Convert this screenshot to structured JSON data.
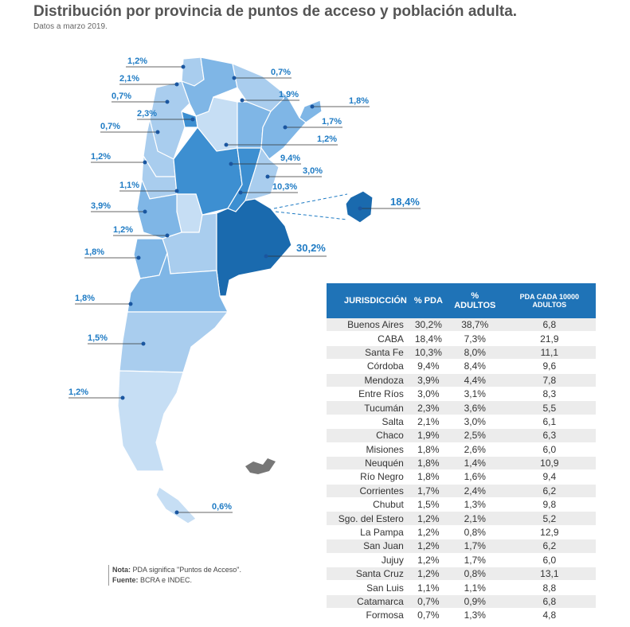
{
  "header": {
    "title": "Distribución por provincia de puntos de acceso y población adulta.",
    "subtitle": "Datos a marzo 2019."
  },
  "map_labels": {
    "jujuy": "1,2%",
    "salta_n": "2,1%",
    "catamarca": "0,7%",
    "tucuman": "2,3%",
    "la_rioja": "0,7%",
    "san_juan": "1,2%",
    "san_luis": "1,1%",
    "mendoza": "3,9%",
    "neuquen_upper": "1,2%",
    "neuquen": "1,8%",
    "rio_negro": "1,8%",
    "chubut": "1,5%",
    "santa_cruz": "1,2%",
    "tierra_del_fuego": "0,6%",
    "formosa": "0,7%",
    "chaco": "1,9%",
    "misiones": "1,8%",
    "corrientes": "1,7%",
    "sgo_estero": "1,2%",
    "cordoba": "9,4%",
    "entre_rios": "3,0%",
    "santa_fe": "10,3%",
    "caba": "18,4%",
    "buenos_aires": "30,2%"
  },
  "colors": {
    "darkest": "#1a6aae",
    "dark": "#3d8fd1",
    "medium": "#7fb6e6",
    "light": "#a9cdee",
    "lightest": "#c6def4",
    "accent": "#1f7bc4"
  },
  "table": {
    "headers": [
      "JURISDICCIÓN",
      "% PDA",
      "% ADULTOS",
      "PDA CADA 10000 ADULTOS"
    ],
    "rows": [
      [
        "Buenos Aires",
        "30,2%",
        "38,7%",
        "6,8"
      ],
      [
        "CABA",
        "18,4%",
        "7,3%",
        "21,9"
      ],
      [
        "Santa Fe",
        "10,3%",
        "8,0%",
        "11,1"
      ],
      [
        "Córdoba",
        "9,4%",
        "8,4%",
        "9,6"
      ],
      [
        "Mendoza",
        "3,9%",
        "4,4%",
        "7,8"
      ],
      [
        "Entre Ríos",
        "3,0%",
        "3,1%",
        "8,3"
      ],
      [
        "Tucumán",
        "2,3%",
        "3,6%",
        "5,5"
      ],
      [
        "Salta",
        "2,1%",
        "3,0%",
        "6,1"
      ],
      [
        "Chaco",
        "1,9%",
        "2,5%",
        "6,3"
      ],
      [
        "Misiones",
        "1,8%",
        "2,6%",
        "6,0"
      ],
      [
        "Neuquén",
        "1,8%",
        "1,4%",
        "10,9"
      ],
      [
        "Río Negro",
        "1,8%",
        "1,6%",
        "9,4"
      ],
      [
        "Corrientes",
        "1,7%",
        "2,4%",
        "6,2"
      ],
      [
        "Chubut",
        "1,5%",
        "1,3%",
        "9,8"
      ],
      [
        "Sgo. del Estero",
        "1,2%",
        "2,1%",
        "5,2"
      ],
      [
        "La Pampa",
        "1,2%",
        "0,8%",
        "12,9"
      ],
      [
        "San Juan",
        "1,2%",
        "1,7%",
        "6,2"
      ],
      [
        "Jujuy",
        "1,2%",
        "1,7%",
        "6,0"
      ],
      [
        "Santa Cruz",
        "1,2%",
        "0,8%",
        "13,1"
      ],
      [
        "San Luis",
        "1,1%",
        "1,1%",
        "8,8"
      ],
      [
        "Catamarca",
        "0,7%",
        "0,9%",
        "6,8"
      ],
      [
        "Formosa",
        "0,7%",
        "1,3%",
        "4,8"
      ]
    ]
  },
  "note": {
    "nota_label": "Nota:",
    "nota_text": " PDA significa \"Puntos de Acceso\".",
    "fuente_label": "Fuente:",
    "fuente_text": " BCRA e INDEC."
  }
}
